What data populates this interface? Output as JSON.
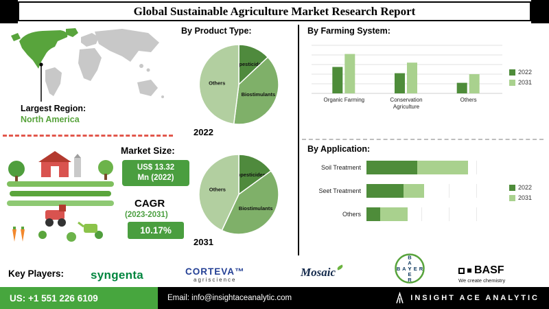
{
  "header": {
    "title": "Global Sustainable Agriculture Market Research Report"
  },
  "left_panel": {
    "largest_region_label": "Largest Region:",
    "largest_region_value": "North America",
    "market_size": {
      "label": "Market Size:",
      "badge_line1": "US$ 13.32",
      "badge_line2": "Mn (2022)"
    },
    "cagr": {
      "label": "CAGR",
      "period": "(2023-2031)",
      "value": "10.17%"
    }
  },
  "sections": {
    "product_type_title": "By Product Type:",
    "farming_system_title": "By Farming System:",
    "application_title": "By Application:"
  },
  "chart_data": [
    {
      "type": "pie",
      "title": "By Product Type:",
      "year": "2022",
      "labels": [
        "Biopesticides",
        "Biostimulants",
        "Others"
      ],
      "values": [
        13,
        39,
        48
      ],
      "colors": [
        "#4f8a3d",
        "#7fb069",
        "#b2cfa0"
      ]
    },
    {
      "type": "pie",
      "title": "By Product Type:",
      "year": "2031",
      "labels": [
        "Biopesticides",
        "Biostimulants",
        "Others"
      ],
      "values": [
        15,
        42,
        43
      ],
      "colors": [
        "#4f8a3d",
        "#7fb069",
        "#b2cfa0"
      ]
    },
    {
      "type": "bar",
      "title": "By Farming System:",
      "categories": [
        "Organic Farming",
        "Conservation Agriculture",
        "Others"
      ],
      "series": [
        {
          "name": "2022",
          "color": "#4e8c3a",
          "values": [
            55,
            42,
            22
          ]
        },
        {
          "name": "2031",
          "color": "#a9d18e",
          "values": [
            82,
            64,
            40
          ]
        }
      ],
      "ylim": [
        0,
        100
      ],
      "grid": true,
      "legend": "right"
    },
    {
      "type": "hbar",
      "title": "By Application:",
      "stacked": true,
      "categories": [
        "Soil Treatment",
        "Seet Treatment",
        "Others"
      ],
      "series": [
        {
          "name": "2022",
          "color": "#4e8c3a",
          "values": [
            37,
            27,
            10
          ]
        },
        {
          "name": "2031",
          "color": "#a9d18e",
          "values": [
            37,
            15,
            20
          ]
        }
      ],
      "xlim": [
        0,
        100
      ],
      "legend": "right"
    }
  ],
  "key_players": {
    "label": "Key Players:",
    "syngenta": "syngenta",
    "corteva": "CORTEVA™",
    "corteva_sub": "agriscience",
    "mosaic": "Mosaic",
    "bayer": "BAYER",
    "basf": "BASF",
    "basf_sub": "We create chemistry"
  },
  "footer": {
    "phone": "US: +1 551 226 6109",
    "email": "Email: info@insightaceanalytic.com",
    "brand": "INSIGHT ACE ANALYTIC"
  },
  "colors": {
    "accent_green": "#57a33b",
    "badge_green": "#4a9e3f",
    "series_dark": "#4e8c3a",
    "series_light": "#a9d18e",
    "dashed_red": "#e2574c",
    "footer_green": "#47a63e"
  }
}
